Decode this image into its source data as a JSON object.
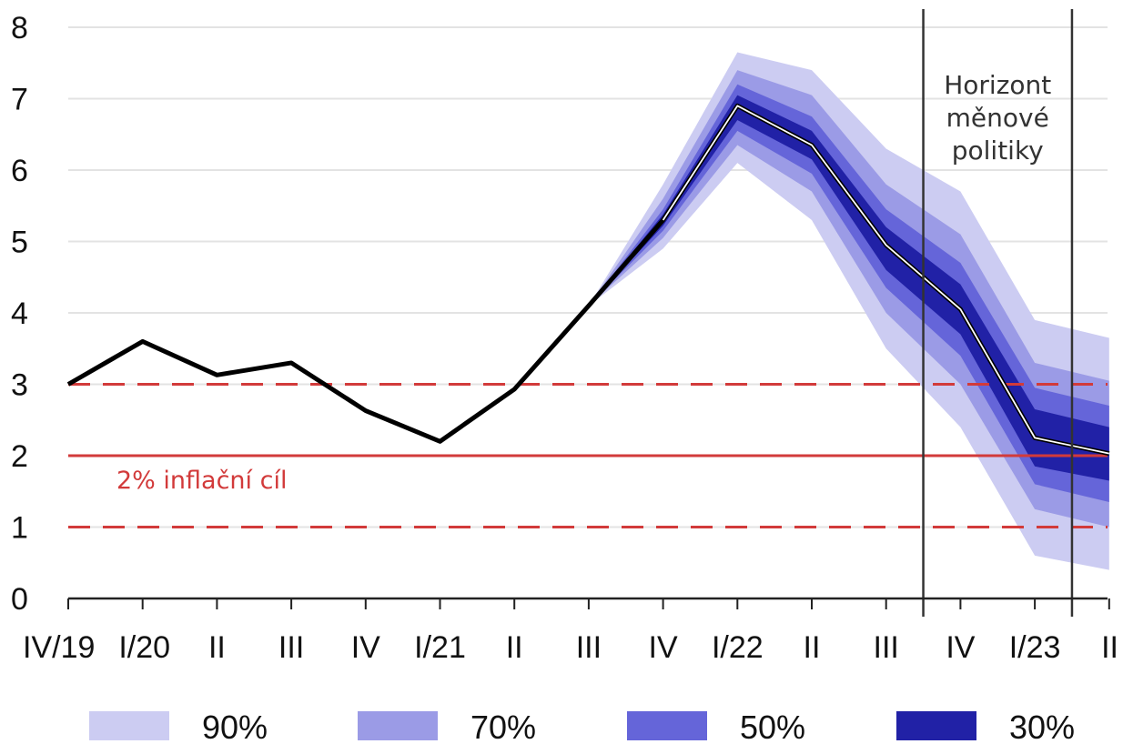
{
  "chart_data": {
    "type": "fan",
    "categories": [
      "IV/19",
      "I/20",
      "II",
      "III",
      "IV",
      "I/21",
      "II",
      "III",
      "IV",
      "I/22",
      "II",
      "III",
      "IV",
      "I/23",
      "II"
    ],
    "ylim": [
      0,
      8
    ],
    "yticks": [
      0,
      1,
      2,
      3,
      4,
      5,
      6,
      7,
      8
    ],
    "grid": "horizontal",
    "series": [
      {
        "values": [
          3.0,
          3.6,
          3.13,
          3.3,
          2.63,
          2.2,
          2.93,
          4.1,
          5.3,
          6.9,
          6.35,
          4.95,
          4.05,
          2.25,
          2.03
        ]
      }
    ],
    "fan_start_index": 7,
    "bands": [
      {
        "name": "90%",
        "color": "#ccccf2",
        "lower": [
          4.1,
          4.9,
          6.1,
          5.3,
          3.5,
          2.4,
          0.6,
          0.4
        ],
        "upper": [
          4.1,
          5.8,
          7.65,
          7.4,
          6.3,
          5.7,
          3.9,
          3.65
        ]
      },
      {
        "name": "70%",
        "color": "#9b9be6",
        "lower": [
          4.1,
          5.05,
          6.35,
          5.7,
          4.0,
          3.0,
          1.25,
          1.0
        ],
        "upper": [
          4.1,
          5.6,
          7.4,
          7.05,
          5.8,
          5.1,
          3.3,
          3.05
        ]
      },
      {
        "name": "50%",
        "color": "#6565d9",
        "lower": [
          4.1,
          5.15,
          6.55,
          5.95,
          4.35,
          3.4,
          1.6,
          1.35
        ],
        "upper": [
          4.1,
          5.45,
          7.2,
          6.75,
          5.45,
          4.7,
          2.95,
          2.7
        ]
      },
      {
        "name": "30%",
        "color": "#2121a6",
        "lower": [
          4.1,
          5.22,
          6.7,
          6.15,
          4.6,
          3.7,
          1.85,
          1.65
        ],
        "upper": [
          4.1,
          5.38,
          7.05,
          6.55,
          5.2,
          4.4,
          2.65,
          2.4
        ]
      }
    ],
    "target": {
      "value": 2,
      "band": [
        1,
        3
      ],
      "label": "2% inflační cíl",
      "color": "#d23a3a"
    },
    "horizon": {
      "x_between": [
        [
          11,
          12
        ],
        [
          13,
          14
        ]
      ],
      "label_lines": [
        "Horizont",
        "měnové",
        "politiky"
      ]
    },
    "legend": {
      "position": "bottom",
      "items": [
        "90%",
        "70%",
        "50%",
        "30%"
      ]
    }
  }
}
